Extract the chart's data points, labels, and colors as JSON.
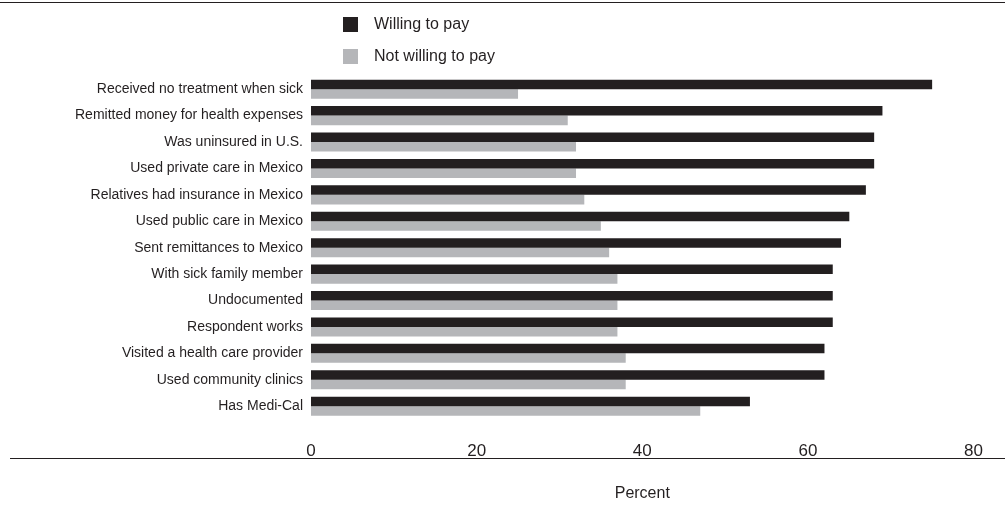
{
  "chart_data": {
    "type": "bar",
    "orientation": "horizontal",
    "xlabel": "Percent",
    "categories": [
      "Received no treatment when sick",
      "Remitted money for health expenses",
      "Was uninsured in U.S.",
      "Used private care in Mexico",
      "Relatives had insurance in Mexico",
      "Used public care in Mexico",
      "Sent remittances to Mexico",
      "With sick family member",
      "Undocumented",
      "Respondent works",
      "Visited a health care provider",
      "Used community clinics",
      "Has Medi-Cal"
    ],
    "series": [
      {
        "name": "Willing to pay",
        "color": "#231f20",
        "values": [
          75,
          69,
          68,
          68,
          67,
          65,
          64,
          63,
          63,
          63,
          62,
          62,
          53
        ]
      },
      {
        "name": "Not willing to pay",
        "color": "#b5b6b9",
        "values": [
          25,
          31,
          32,
          32,
          33,
          35,
          36,
          37,
          37,
          37,
          38,
          38,
          47
        ]
      }
    ],
    "xlim": [
      0,
      80
    ],
    "xticks": [
      0,
      20,
      40,
      60,
      80
    ],
    "grid": false,
    "legend": "top"
  }
}
